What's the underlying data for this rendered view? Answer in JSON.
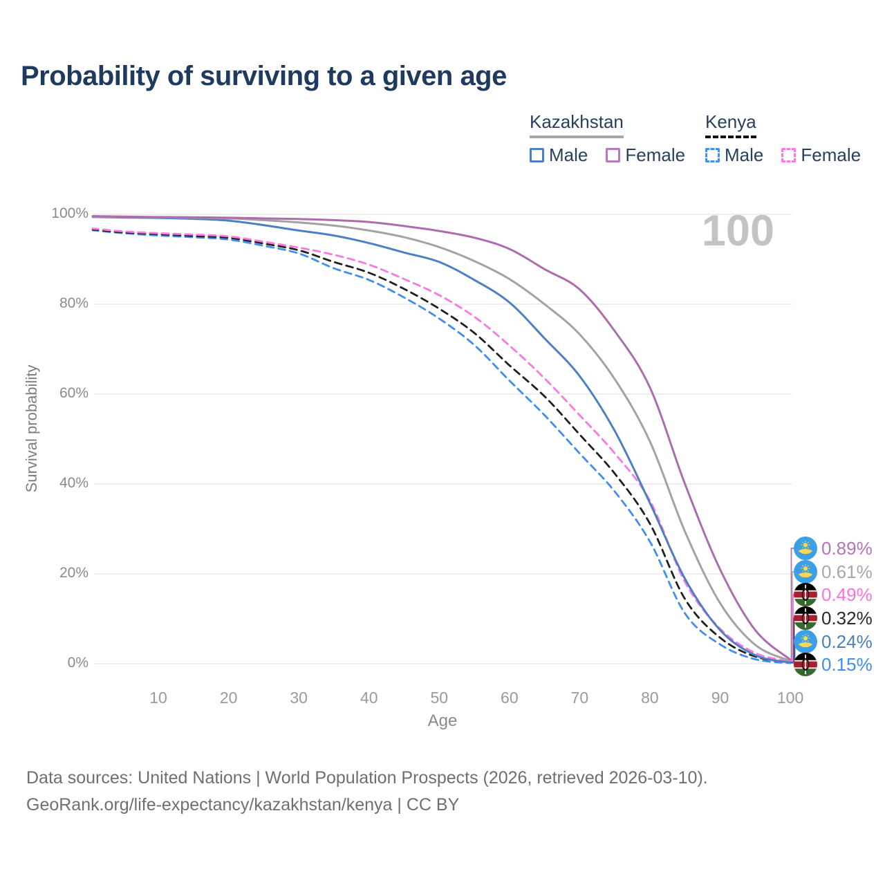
{
  "title": "Probability of surviving to a given age",
  "watermark": "100",
  "legend": {
    "kazakhstan": {
      "name": "Kazakhstan",
      "male": "Male",
      "female": "Female"
    },
    "kenya": {
      "name": "Kenya",
      "male": "Male",
      "female": "Female"
    }
  },
  "y_axis": {
    "label": "Survival probability",
    "tick_values": [
      0,
      20,
      40,
      60,
      80,
      100
    ],
    "tick_suffix": "%"
  },
  "x_axis": {
    "label": "Age",
    "tick_values": [
      10,
      20,
      30,
      40,
      50,
      60,
      70,
      80,
      90,
      100
    ]
  },
  "end_labels": [
    {
      "series": "kazakhstan-female",
      "flag": "kazakhstan",
      "value": "0.89%",
      "color": "#b474b6"
    },
    {
      "series": "kazakhstan-total",
      "flag": "kazakhstan",
      "value": "0.61%",
      "color": "#a8a8a8"
    },
    {
      "series": "kenya-female",
      "flag": "kenya",
      "value": "0.49%",
      "color": "#ff70dd"
    },
    {
      "series": "kenya-total",
      "flag": "kenya",
      "value": "0.32%",
      "color": "#2a2a2a"
    },
    {
      "series": "kazakhstan-male",
      "flag": "kazakhstan",
      "value": "0.24%",
      "color": "#4a7ec4"
    },
    {
      "series": "kenya-male",
      "flag": "kenya",
      "value": "0.15%",
      "color": "#3f8df5"
    }
  ],
  "footer": {
    "line1": "Data sources: United Nations | World Population Prospects (2026, retrieved 2026-03-10).",
    "line2": "GeoRank.org/life-expectancy/kazakhstan/kenya | CC BY"
  },
  "chart_data": {
    "type": "line",
    "title": "Probability of surviving to a given age",
    "xlabel": "Age",
    "ylabel": "Survival probability",
    "xlim": [
      1,
      100
    ],
    "ylim": [
      0,
      100
    ],
    "grid": "horizontal",
    "legend_position": "top-right",
    "x": [
      1,
      5,
      10,
      15,
      20,
      25,
      30,
      35,
      40,
      45,
      50,
      55,
      60,
      65,
      70,
      75,
      80,
      85,
      90,
      95,
      100
    ],
    "series": [
      {
        "id": "kenya-male",
        "name": "Kenya Male",
        "country": "Kenya",
        "sex": "Male",
        "color": "#3f8df5",
        "dash": true,
        "values": [
          96.4,
          95.8,
          95.3,
          94.9,
          94.4,
          93.0,
          91.3,
          88.0,
          85.4,
          81.5,
          76.8,
          70.9,
          63.0,
          55.3,
          46.8,
          38.3,
          27.2,
          11.2,
          4.3,
          1.0,
          0.15
        ]
      },
      {
        "id": "kenya-total",
        "name": "Kenya",
        "country": "Kenya",
        "sex": "Both",
        "color": "#1f1f1f",
        "dash": true,
        "values": [
          96.6,
          96.0,
          95.6,
          95.2,
          94.8,
          93.5,
          92.0,
          89.4,
          87.0,
          83.4,
          79.0,
          73.6,
          66.4,
          59.5,
          51.0,
          42.3,
          31.2,
          14.4,
          5.8,
          1.6,
          0.32
        ]
      },
      {
        "id": "kenya-female",
        "name": "Kenya Female",
        "country": "Kenya",
        "sex": "Female",
        "color": "#ff77de",
        "dash": true,
        "values": [
          96.8,
          96.2,
          95.8,
          95.5,
          95.1,
          93.9,
          92.6,
          91.0,
          88.8,
          85.6,
          82.0,
          77.2,
          70.8,
          63.5,
          55.3,
          46.8,
          36.3,
          18.2,
          7.8,
          2.4,
          0.49
        ]
      },
      {
        "id": "kazakhstan-male",
        "name": "Kazakhstan Male",
        "country": "Kazakhstan",
        "sex": "Male",
        "color": "#4d7fc4",
        "dash": false,
        "values": [
          99.4,
          99.3,
          99.2,
          99.0,
          98.6,
          97.6,
          96.4,
          95.3,
          93.6,
          91.5,
          89.4,
          85.4,
          80.4,
          72.4,
          64.0,
          51.8,
          35.8,
          18.9,
          7.5,
          1.9,
          0.24
        ]
      },
      {
        "id": "kazakhstan-total",
        "name": "Kazakhstan",
        "country": "Kazakhstan",
        "sex": "Both",
        "color": "#a3a3a3",
        "dash": false,
        "values": [
          99.5,
          99.45,
          99.35,
          99.25,
          99.1,
          98.7,
          98.2,
          97.5,
          96.4,
          94.9,
          92.7,
          89.6,
          85.6,
          80.0,
          73.3,
          63.3,
          49.5,
          29.4,
          13.5,
          4.2,
          0.61
        ]
      },
      {
        "id": "kazakhstan-female",
        "name": "Kazakhstan Female",
        "country": "Kazakhstan",
        "sex": "Female",
        "color": "#ad6cae",
        "dash": false,
        "values": [
          99.6,
          99.5,
          99.4,
          99.35,
          99.25,
          99.1,
          98.95,
          98.7,
          98.3,
          97.4,
          96.3,
          94.8,
          92.3,
          87.8,
          83.3,
          74.0,
          61.5,
          40.0,
          21.0,
          7.5,
          0.89
        ]
      }
    ],
    "end_values_at_age_100": {
      "kazakhstan-female": 0.89,
      "kazakhstan-total": 0.61,
      "kenya-female": 0.49,
      "kenya-total": 0.32,
      "kazakhstan-male": 0.24,
      "kenya-male": 0.15
    }
  }
}
